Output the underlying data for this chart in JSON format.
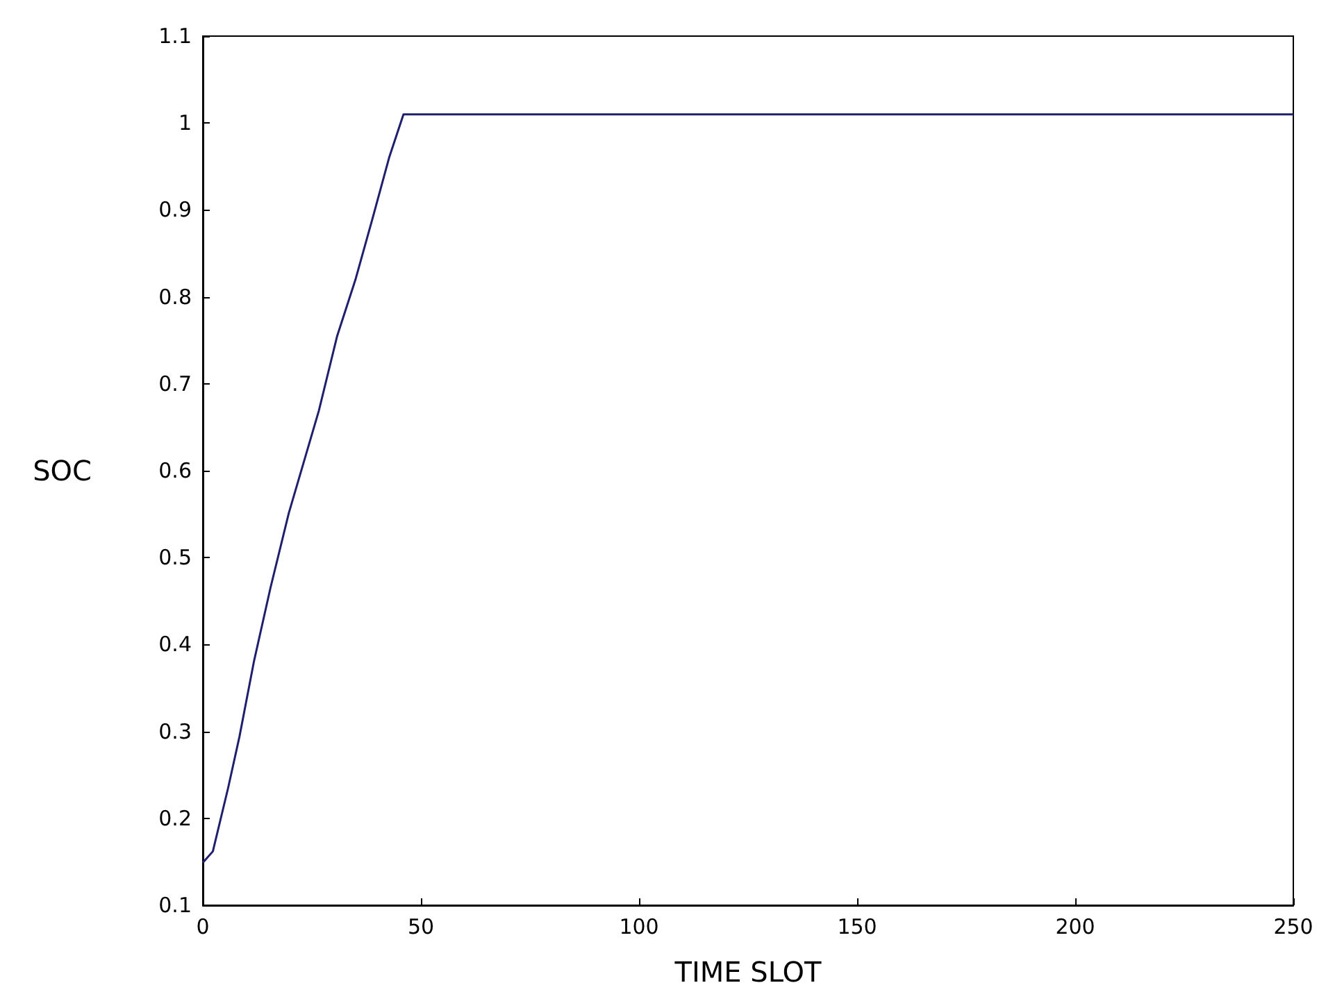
{
  "chart_data": {
    "type": "line",
    "xlabel": "TIME SLOT",
    "ylabel": "SOC",
    "x": [
      0,
      2.3,
      5.8,
      8.4,
      11.7,
      15.5,
      19.7,
      26.6,
      30.8,
      35,
      38.9,
      42.7,
      46,
      250
    ],
    "series": [
      {
        "color": "#1f1f6e",
        "values": [
          0.149,
          0.162,
          0.235,
          0.294,
          0.38,
          0.465,
          0.551,
          0.669,
          0.755,
          0.82,
          0.89,
          0.96,
          1.01,
          1.01
        ]
      }
    ],
    "xlim": [
      0,
      250
    ],
    "xticks": [
      0,
      50,
      100,
      150,
      200,
      250
    ],
    "ylim": [
      0.1,
      1.1
    ],
    "yticks": [
      0.1,
      0.2,
      0.3,
      0.4,
      0.5,
      0.6,
      0.7,
      0.8,
      0.9,
      1,
      1.1
    ],
    "grid": false,
    "marker": "none",
    "line_style": "solid"
  }
}
